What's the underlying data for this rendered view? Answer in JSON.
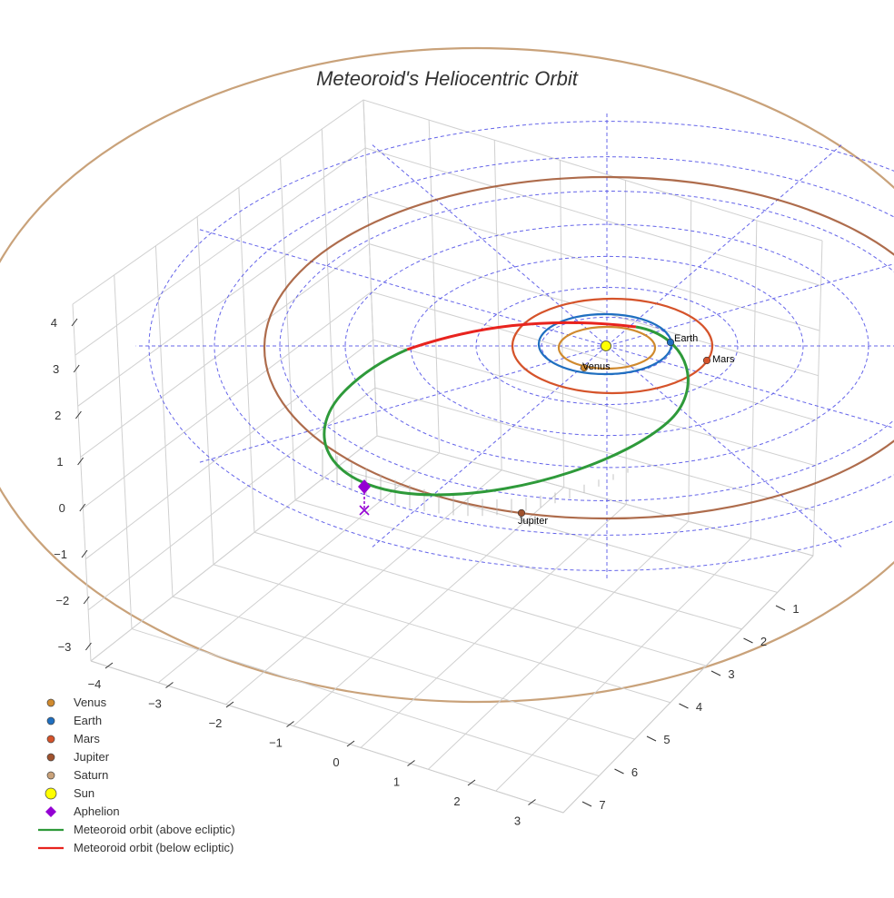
{
  "chart_data": {
    "type": "scatter",
    "projection": "3d",
    "title": "Meteoroid's Heliocentric Orbit",
    "axes": {
      "x": {
        "ticks": [
          -4,
          -3,
          -2,
          -1,
          0,
          1,
          2,
          3
        ],
        "range": [
          -4,
          3
        ]
      },
      "y": {
        "ticks": [
          1,
          2,
          3,
          4,
          5,
          6,
          7
        ],
        "range": [
          0,
          7
        ]
      },
      "z": {
        "ticks": [
          4,
          3,
          2,
          1,
          0,
          -1,
          -2,
          -3
        ],
        "range": [
          -3,
          4
        ]
      }
    },
    "bodies": [
      {
        "name": "Venus",
        "label": "Venus",
        "color": "#d08a2e"
      },
      {
        "name": "Earth",
        "label": "Earth",
        "color": "#1f6fc0"
      },
      {
        "name": "Mars",
        "label": "Mars",
        "color": "#d5532a"
      },
      {
        "name": "Jupiter",
        "label": "Jupiter",
        "color": "#a0522d"
      },
      {
        "name": "Saturn",
        "label": "",
        "color": "#c9a27a"
      },
      {
        "name": "Sun",
        "label": "",
        "color": "#ffff00"
      }
    ],
    "aphelion": {
      "name": "Aphelion",
      "color": "#9400d3"
    },
    "orbit_segments": [
      {
        "name": "Meteoroid orbit (above ecliptic)",
        "color": "#2e9a3a"
      },
      {
        "name": "Meteoroid orbit (below ecliptic)",
        "color": "#e8231e"
      }
    ],
    "grid": true,
    "reference_grid_color": "#4a4ae6",
    "legend_position": "bottom-left"
  },
  "legend": [
    {
      "label": "Venus",
      "symbol": "circle",
      "color": "#d08a2e"
    },
    {
      "label": "Earth",
      "symbol": "circle",
      "color": "#1f6fc0"
    },
    {
      "label": "Mars",
      "symbol": "circle",
      "color": "#d5532a"
    },
    {
      "label": "Jupiter",
      "symbol": "circle",
      "color": "#a0522d"
    },
    {
      "label": "Saturn",
      "symbol": "circle",
      "color": "#c9a27a"
    },
    {
      "label": "Sun",
      "symbol": "circle-large",
      "color": "#ffff00"
    },
    {
      "label": "Aphelion",
      "symbol": "diamond",
      "color": "#9400d3"
    },
    {
      "label": "Meteoroid orbit (above ecliptic)",
      "symbol": "line",
      "color": "#2e9a3a"
    },
    {
      "label": "Meteoroid orbit (below ecliptic)",
      "symbol": "line",
      "color": "#e8231e"
    }
  ]
}
